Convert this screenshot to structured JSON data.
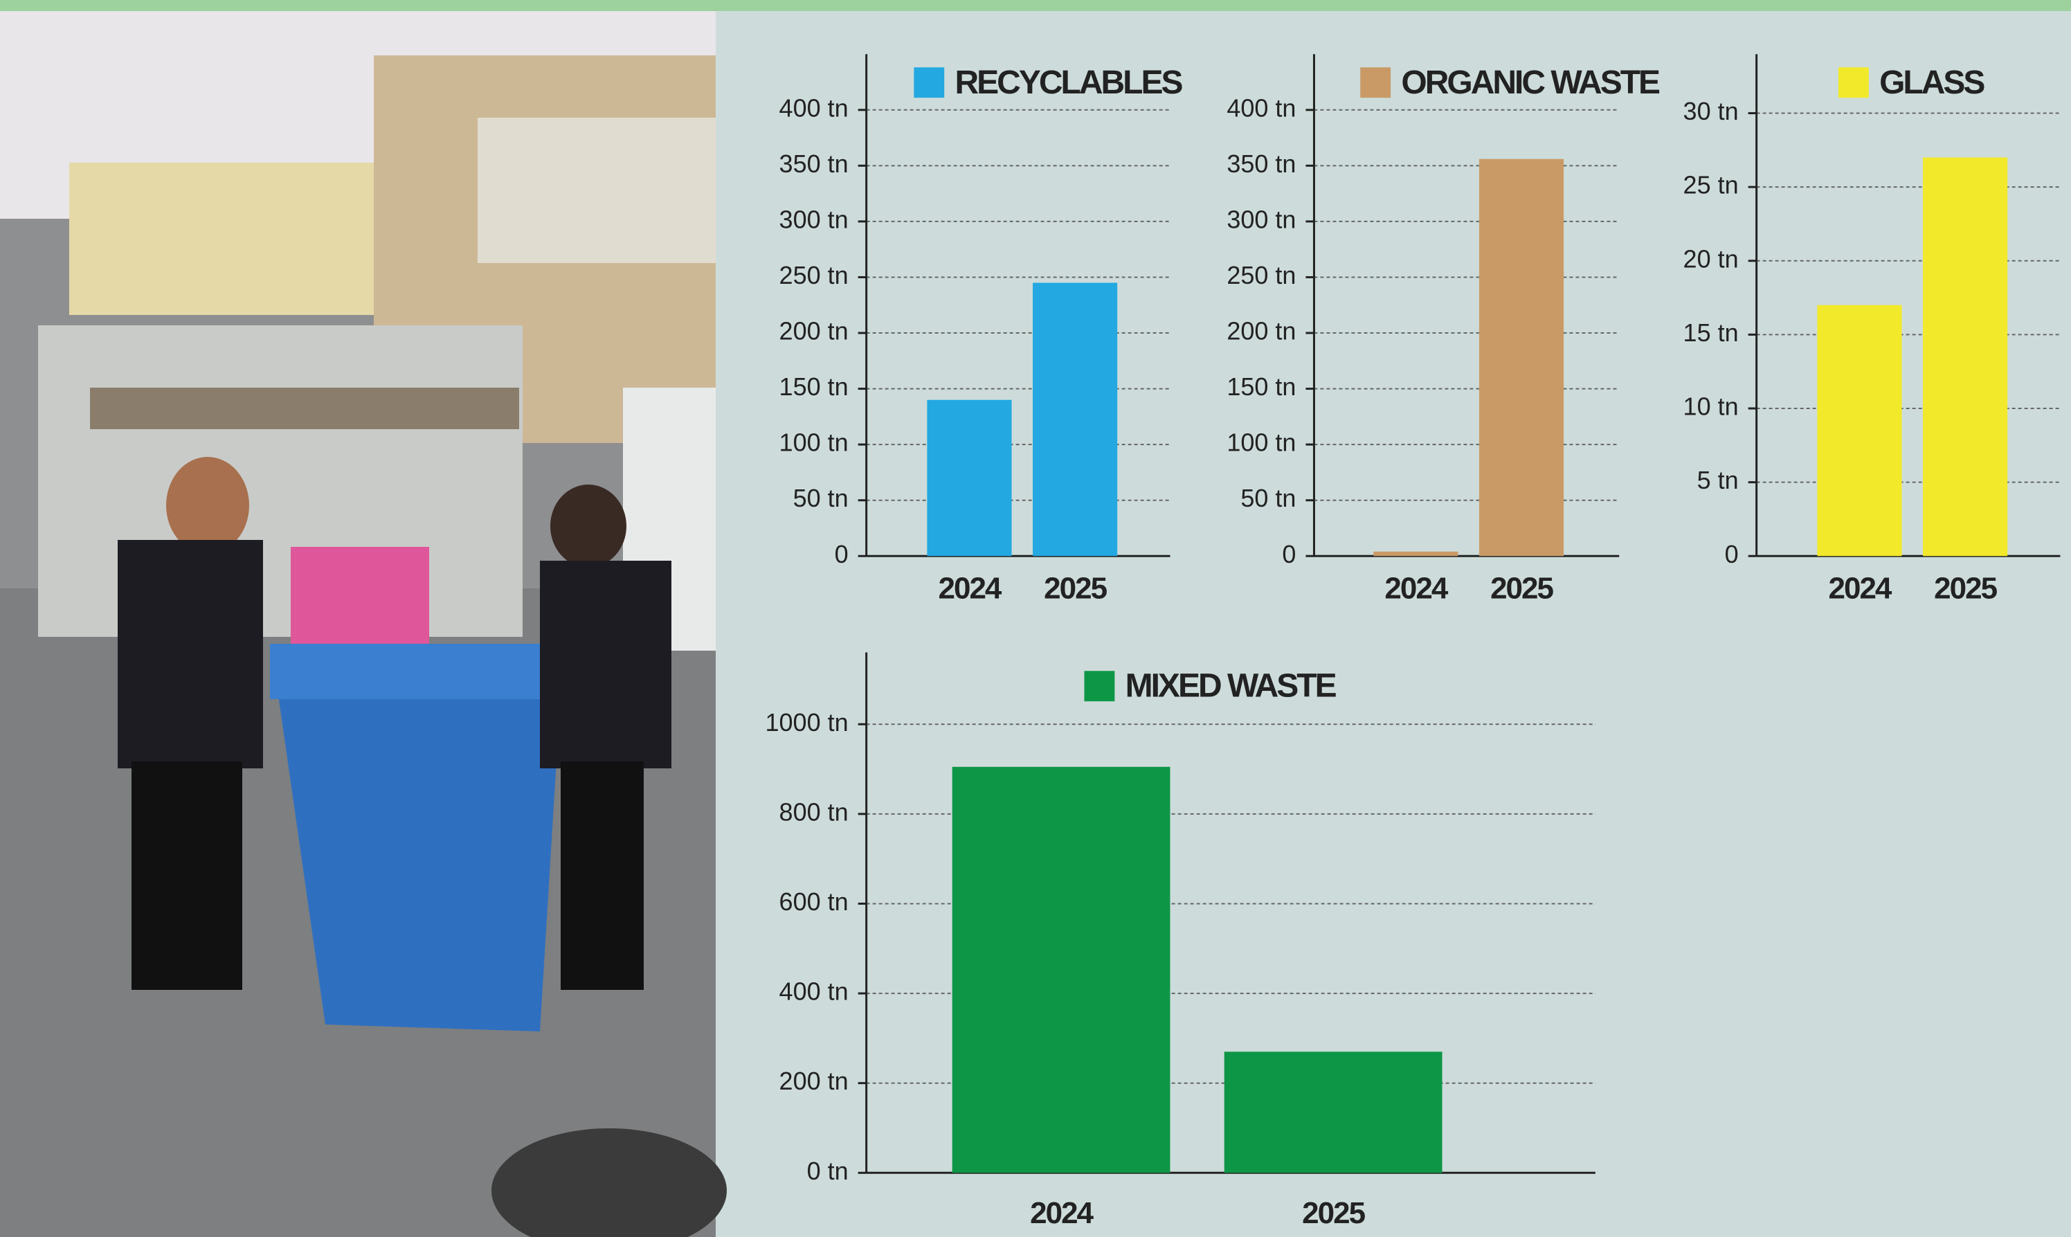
{
  "chart_data": [
    {
      "type": "bar",
      "title": "RECYCLABLES",
      "categories": [
        "2024",
        "2025"
      ],
      "values": [
        140,
        245
      ],
      "color": "#23a8e2",
      "ylim": [
        0,
        450
      ],
      "yticks": [
        0,
        {
          "value": 50,
          "label": "50 tn"
        },
        {
          "value": 100,
          "label": "100 tn"
        },
        {
          "value": 150,
          "label": "150 tn"
        },
        {
          "value": 200,
          "label": "200 tn"
        },
        {
          "value": 250,
          "label": "250 tn"
        },
        {
          "value": 300,
          "label": "300 tn"
        },
        {
          "value": 350,
          "label": "350 tn"
        },
        {
          "value": 400,
          "label": "400 tn"
        }
      ],
      "grid": true
    },
    {
      "type": "bar",
      "title": "ORGANIC WASTE",
      "categories": [
        "2024",
        "2025"
      ],
      "values": [
        4,
        356
      ],
      "color": "#c99a66",
      "ylim": [
        0,
        450
      ],
      "yticks": [
        0,
        {
          "value": 50,
          "label": "50 tn"
        },
        {
          "value": 100,
          "label": "100 tn"
        },
        {
          "value": 150,
          "label": "150 tn"
        },
        {
          "value": 200,
          "label": "200 tn"
        },
        {
          "value": 250,
          "label": "250 tn"
        },
        {
          "value": 300,
          "label": "300 tn"
        },
        {
          "value": 350,
          "label": "350 tn"
        },
        {
          "value": 400,
          "label": "400 tn"
        }
      ],
      "grid": true
    },
    {
      "type": "bar",
      "title": "GLASS",
      "categories": [
        "2024",
        "2025"
      ],
      "values": [
        17,
        27
      ],
      "color": "#f2e92a",
      "ylim": [
        0,
        34
      ],
      "yticks": [
        0,
        {
          "value": 5,
          "label": "5 tn"
        },
        {
          "value": 10,
          "label": "10 tn"
        },
        {
          "value": 15,
          "label": "15 tn"
        },
        {
          "value": 20,
          "label": "20 tn"
        },
        {
          "value": 25,
          "label": "25 tn"
        },
        {
          "value": 30,
          "label": "30 tn"
        }
      ],
      "grid": true
    },
    {
      "type": "bar",
      "title": "MIXED WASTE",
      "categories": [
        "2024",
        "2025"
      ],
      "values": [
        905,
        270
      ],
      "color": "#0e9647",
      "ylim": [
        0,
        1160
      ],
      "yticks": [
        {
          "value": 0,
          "label": "0 tn"
        },
        {
          "value": 200,
          "label": "200 tn"
        },
        {
          "value": 400,
          "label": "400 tn"
        },
        {
          "value": 600,
          "label": "600 tn"
        },
        {
          "value": 800,
          "label": "800 tn"
        },
        {
          "value": 1000,
          "label": "1000 tn"
        }
      ],
      "grid": true
    }
  ]
}
